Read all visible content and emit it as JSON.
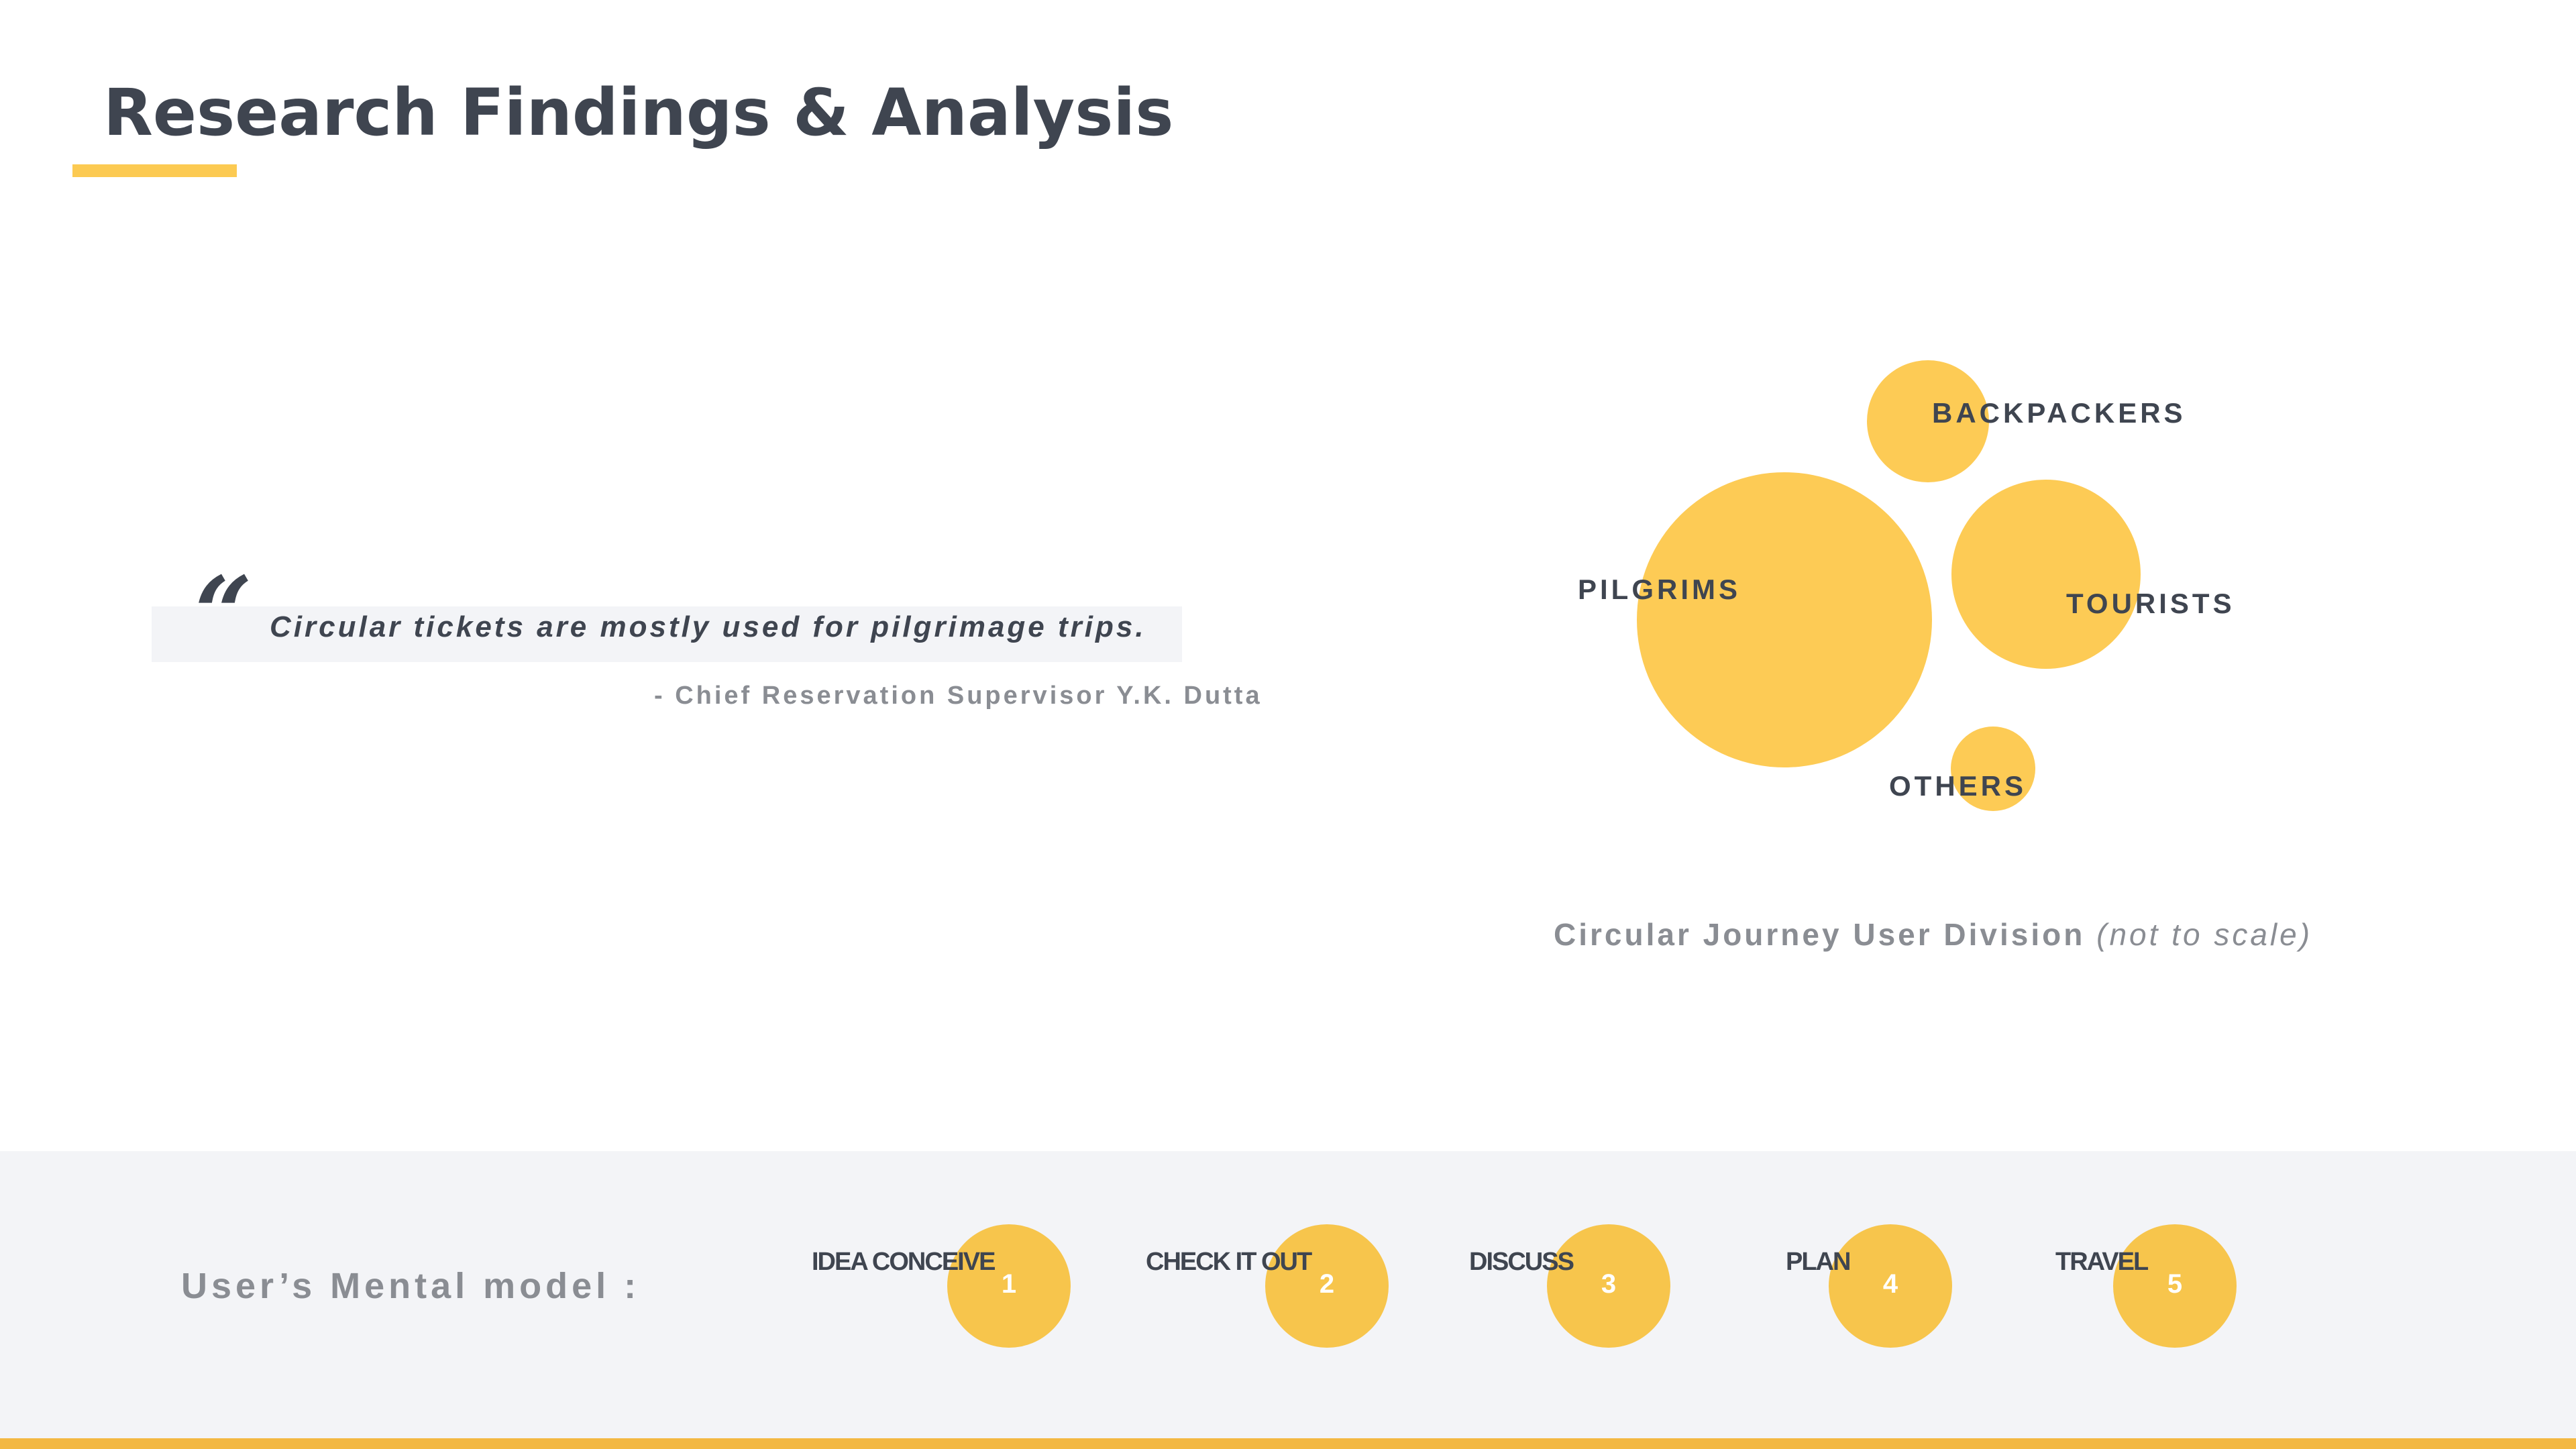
{
  "header": {
    "title": "Research Findings & Analysis"
  },
  "quote": {
    "mark": "“",
    "text": "Circular tickets are mostly used for pilgrimage trips.",
    "author": "- Chief Reservation Supervisor Y.K. Dutta"
  },
  "diagram": {
    "segments": [
      {
        "label": "BACKPACKERS"
      },
      {
        "label": "PILGRIMS"
      },
      {
        "label": "TOURISTS"
      },
      {
        "label": "OTHERS"
      }
    ],
    "caption_main": "Circular Journey User Division",
    "caption_note": "(not to scale)"
  },
  "mental_model": {
    "label": "User’s Mental model :",
    "steps": [
      {
        "label": "IDEA CONCEIVE",
        "number": "1"
      },
      {
        "label": "CHECK IT OUT",
        "number": "2"
      },
      {
        "label": "DISCUSS",
        "number": "3"
      },
      {
        "label": "PLAN",
        "number": "4"
      },
      {
        "label": "TRAVEL",
        "number": "5"
      }
    ]
  },
  "colors": {
    "accent": "#fcca52",
    "bubble": "#fdcb55",
    "step_circle": "#f7c54c",
    "text_dark": "#3f4550",
    "text_muted": "#8a8d93",
    "band_bg": "#f3f4f7",
    "bottom_bar": "#f3b843"
  }
}
